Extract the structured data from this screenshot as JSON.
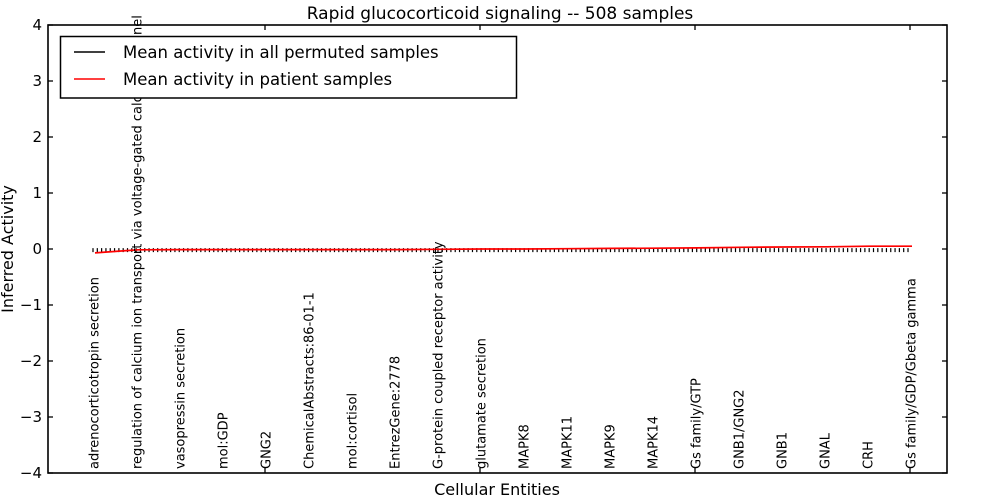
{
  "chart_data": {
    "type": "line",
    "title": "Rapid glucocorticoid signaling -- 508 samples",
    "xlabel": "Cellular Entities",
    "ylabel": "Inferred Activity",
    "ylim": [
      -4,
      4
    ],
    "yticks": [
      4,
      3,
      2,
      1,
      0,
      -1,
      -2,
      -3,
      -4
    ],
    "grid": false,
    "legend_position": "upper left",
    "categories": [
      "adrenocorticotropin secretion",
      "regulation of calcium ion transport via voltage-gated calcium channel",
      "vasopressin secretion",
      "mol:GDP",
      "GNG2",
      "ChemicalAbstracts:86-01-1",
      "mol:cortisol",
      "EntrezGene:2778",
      "G-protein coupled receptor activity",
      "glutamate secretion",
      "MAPK8",
      "MAPK11",
      "MAPK9",
      "MAPK14",
      "Gs family/GTP",
      "GNB1/GNG2",
      "GNB1",
      "GNAL",
      "CRH",
      "Gs family/GDP/Gbeta gamma"
    ],
    "series": [
      {
        "name": "Mean activity in all permuted samples",
        "color": "#000000",
        "style": "dense-vertical-tick-markers",
        "values": [
          -0.02,
          -0.02,
          -0.02,
          -0.02,
          -0.02,
          -0.02,
          -0.02,
          -0.02,
          -0.02,
          -0.02,
          -0.02,
          -0.02,
          -0.02,
          -0.02,
          -0.02,
          -0.02,
          -0.02,
          -0.02,
          -0.02,
          -0.02
        ]
      },
      {
        "name": "Mean activity in patient samples",
        "color": "#ff0000",
        "style": "solid",
        "values": [
          -0.07,
          -0.015,
          -0.01,
          -0.01,
          -0.01,
          -0.01,
          -0.01,
          -0.01,
          -0.005,
          0.0,
          0.0,
          0.005,
          0.01,
          0.015,
          0.02,
          0.03,
          0.035,
          0.04,
          0.05,
          0.05
        ]
      }
    ]
  }
}
